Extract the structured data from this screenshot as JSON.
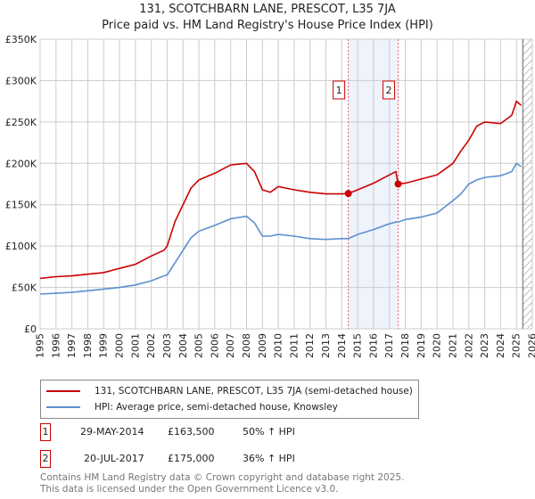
{
  "title": "131, SCOTCHBARN LANE, PRESCOT, L35 7JA",
  "subtitle": "Price paid vs. HM Land Registry's House Price Index (HPI)",
  "chart_data": {
    "type": "line",
    "title": "131, SCOTCHBARN LANE, PRESCOT, L35 7JA",
    "subtitle": "Price paid vs. HM Land Registry's House Price Index (HPI)",
    "xlim": [
      1995,
      2026
    ],
    "ylim": [
      0,
      350000
    ],
    "grid": true,
    "x_ticks": [
      "1995",
      "1996",
      "1997",
      "1998",
      "1999",
      "2000",
      "2001",
      "2002",
      "2003",
      "2004",
      "2005",
      "2006",
      "2007",
      "2008",
      "2009",
      "2010",
      "2011",
      "2012",
      "2013",
      "2014",
      "2015",
      "2016",
      "2017",
      "2018",
      "2019",
      "2020",
      "2021",
      "2022",
      "2023",
      "2024",
      "2025",
      "2026"
    ],
    "y_ticks": [
      {
        "v": 0,
        "label": "£0"
      },
      {
        "v": 50000,
        "label": "£50K"
      },
      {
        "v": 100000,
        "label": "£100K"
      },
      {
        "v": 150000,
        "label": "£150K"
      },
      {
        "v": 200000,
        "label": "£200K"
      },
      {
        "v": 250000,
        "label": "£250K"
      },
      {
        "v": 300000,
        "label": "£300K"
      },
      {
        "v": 350000,
        "label": "£350K"
      }
    ],
    "shaded_range": [
      2014.41,
      2017.55
    ],
    "future_hatch_from": 2025.4,
    "series": [
      {
        "name": "131, SCOTCHBARN LANE, PRESCOT, L35 7JA (semi-detached house)",
        "color": "#cc0000",
        "x": [
          1995,
          1996,
          1997,
          1998,
          1999,
          2000,
          2001,
          2002,
          2002.8,
          2003,
          2003.5,
          2004,
          2004.5,
          2005,
          2006,
          2007,
          2008,
          2008.5,
          2009,
          2009.5,
          2010,
          2011,
          2012,
          2013,
          2014,
          2014.41,
          2015,
          2016,
          2017,
          2017.4,
          2017.55,
          2018,
          2019,
          2020,
          2021,
          2021.5,
          2022,
          2022.5,
          2023,
          2024,
          2024.7,
          2025,
          2025.3
        ],
        "y": [
          61000,
          63000,
          64000,
          66000,
          68000,
          73000,
          78000,
          88000,
          95000,
          100000,
          130000,
          150000,
          170000,
          180000,
          188000,
          198000,
          200000,
          190000,
          168000,
          165000,
          172000,
          168000,
          165000,
          163000,
          163000,
          163500,
          168000,
          176000,
          186000,
          190000,
          175000,
          176000,
          181000,
          186000,
          200000,
          215000,
          228000,
          245000,
          250000,
          248000,
          258000,
          275000,
          270000
        ]
      },
      {
        "name": "HPI: Average price, semi-detached house, Knowsley",
        "color": "#5b8fd0",
        "x": [
          1995,
          1996,
          1997,
          1998,
          1999,
          2000,
          2001,
          2002,
          2002.8,
          2003,
          2003.5,
          2004,
          2004.5,
          2005,
          2006,
          2007,
          2008,
          2008.5,
          2009,
          2009.5,
          2010,
          2011,
          2012,
          2013,
          2014,
          2014.41,
          2015,
          2016,
          2017,
          2017.4,
          2017.55,
          2018,
          2019,
          2020,
          2021,
          2021.5,
          2022,
          2022.5,
          2023,
          2024,
          2024.7,
          2025,
          2025.3
        ],
        "y": [
          42000,
          43000,
          44000,
          46000,
          48000,
          50000,
          53000,
          58000,
          64000,
          65000,
          80000,
          95000,
          110000,
          118000,
          125000,
          133000,
          136000,
          128000,
          112000,
          112000,
          114000,
          112000,
          109000,
          108000,
          109000,
          109000,
          114000,
          120000,
          127000,
          129000,
          129000,
          132000,
          135000,
          140000,
          155000,
          163000,
          175000,
          180000,
          183000,
          185000,
          190000,
          200000,
          196000
        ]
      }
    ],
    "sales": [
      {
        "id": "1",
        "x": 2014.41,
        "y": 163500
      },
      {
        "id": "2",
        "x": 2017.55,
        "y": 175000
      }
    ]
  },
  "legend": {
    "red": "131, SCOTCHBARN LANE, PRESCOT, L35 7JA (semi-detached house)",
    "blue": "HPI: Average price, semi-detached house, Knowsley"
  },
  "sales_table": [
    {
      "id": "1",
      "date": "29-MAY-2014",
      "price": "£163,500",
      "hpi": "50% ↑ HPI"
    },
    {
      "id": "2",
      "date": "20-JUL-2017",
      "price": "£175,000",
      "hpi": "36% ↑ HPI"
    }
  ],
  "footer": {
    "line1": "Contains HM Land Registry data © Crown copyright and database right 2025.",
    "line2": "This data is licensed under the Open Government Licence v3.0."
  }
}
